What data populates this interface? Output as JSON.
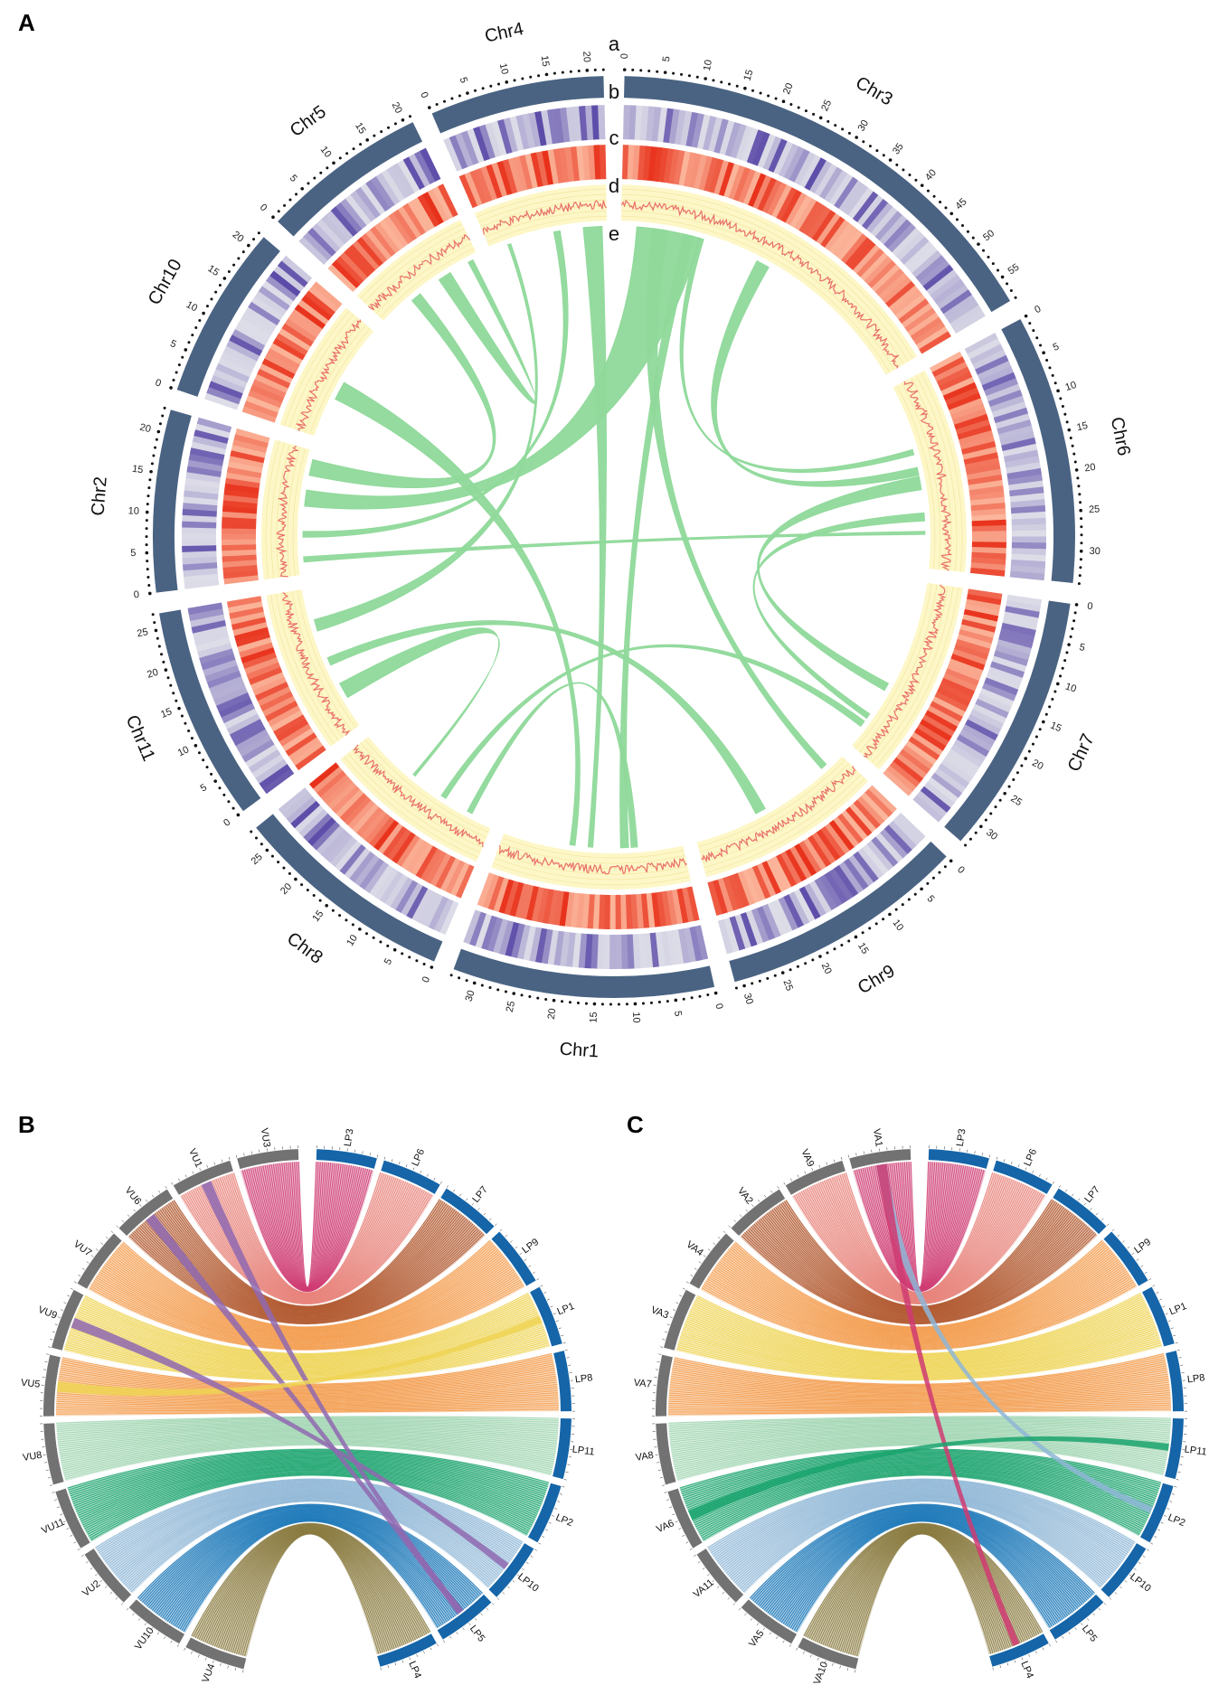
{
  "panels": [
    {
      "letter": "A"
    },
    {
      "letter": "B"
    },
    {
      "letter": "C"
    }
  ],
  "panelA": {
    "track_letters": [
      "a",
      "b",
      "c",
      "d",
      "e"
    ],
    "chromosomes": [
      {
        "name": "Chr3",
        "length": 58,
        "ticks": [
          "0",
          "5",
          "10",
          "15",
          "20",
          "25",
          "30",
          "35",
          "40",
          "45",
          "50",
          "55"
        ]
      },
      {
        "name": "Chr6",
        "length": 34,
        "ticks": [
          "0",
          "5",
          "10",
          "15",
          "20",
          "25",
          "30"
        ]
      },
      {
        "name": "Chr7",
        "length": 33,
        "ticks": [
          "0",
          "5",
          "10",
          "15",
          "20",
          "25",
          "30"
        ]
      },
      {
        "name": "Chr9",
        "length": 31,
        "ticks": [
          "0",
          "5",
          "10",
          "15",
          "20",
          "25",
          "30"
        ]
      },
      {
        "name": "Chr1",
        "length": 33,
        "ticks": [
          "0",
          "5",
          "10",
          "15",
          "20",
          "25",
          "30"
        ]
      },
      {
        "name": "Chr8",
        "length": 28,
        "ticks": [
          "0",
          "5",
          "10",
          "15",
          "20",
          "25"
        ]
      },
      {
        "name": "Chr11",
        "length": 27,
        "ticks": [
          "0",
          "5",
          "10",
          "15",
          "20",
          "25"
        ]
      },
      {
        "name": "Chr2",
        "length": 23,
        "ticks": [
          "0",
          "5",
          "10",
          "15",
          "20"
        ]
      },
      {
        "name": "Chr10",
        "length": 22,
        "ticks": [
          "0",
          "5",
          "10",
          "15",
          "20"
        ]
      },
      {
        "name": "Chr5",
        "length": 21,
        "ticks": [
          "0",
          "5",
          "10",
          "15",
          "20"
        ]
      },
      {
        "name": "Chr4",
        "length": 22,
        "ticks": [
          "0",
          "5",
          "10",
          "15",
          "20"
        ]
      }
    ],
    "links": [
      [
        "Chr4",
        0.15,
        0.6,
        "Chr11",
        0.7,
        2.2
      ],
      [
        "Chr4",
        0.55,
        1.2,
        "Chr2",
        0.3,
        1.1
      ],
      [
        "Chr4",
        0.8,
        3.5,
        "Chr1",
        0.5,
        0.9
      ],
      [
        "Chr10",
        0.35,
        3.5,
        "Chr1",
        0.6,
        1.0
      ],
      [
        "Chr5",
        0.6,
        2.5,
        "Chr5",
        0.9,
        1.0
      ],
      [
        "Chr3",
        0.05,
        12.0,
        "Chr2",
        0.55,
        3.0
      ],
      [
        "Chr3",
        0.2,
        2.0,
        "Chr1",
        0.3,
        1.5
      ],
      [
        "Chr3",
        0.1,
        3.0,
        "Chr9",
        0.1,
        1.2
      ],
      [
        "Chr3",
        0.45,
        2.5,
        "Chr6",
        0.45,
        1.5
      ],
      [
        "Chr3",
        0.25,
        1.0,
        "Chr6",
        0.35,
        1.0
      ],
      [
        "Chr6",
        0.5,
        2.5,
        "Chr7",
        0.6,
        1.5
      ],
      [
        "Chr6",
        0.7,
        1.5,
        "Chr7",
        0.8,
        1.0
      ],
      [
        "Chr6",
        0.8,
        0.6,
        "Chr2",
        0.1,
        1.0
      ],
      [
        "Chr7",
        0.85,
        1.2,
        "Chr8",
        0.35,
        1.0
      ],
      [
        "Chr11",
        0.45,
        1.5,
        "Chr9",
        0.55,
        2.0
      ],
      [
        "Chr11",
        0.2,
        3.0,
        "Chr8",
        0.6,
        0.5
      ],
      [
        "Chr1",
        0.25,
        1.2,
        "Chr8",
        0.15,
        1.0
      ],
      [
        "Chr2",
        0.8,
        3.0,
        "Chr5",
        0.3,
        2.0
      ]
    ]
  },
  "panelB": {
    "left_chroms": [
      "VU3",
      "VU1",
      "VU6",
      "VU7",
      "VU9",
      "VU5",
      "VU8",
      "VU11",
      "VU2",
      "VU10",
      "VU4"
    ],
    "right_chroms": [
      "LP3",
      "LP6",
      "LP7",
      "LP9",
      "LP1",
      "LP8",
      "LP11",
      "LP2",
      "LP10",
      "LP5",
      "LP4"
    ],
    "colors": {
      "grey": "#727272",
      "blue": "#1565a8",
      "bands": [
        "#cf3b72",
        "#e8837a",
        "#b0552a",
        "#f39a4a",
        "#eed454",
        "#f39a4a",
        "#9fd5b0",
        "#1aa36d",
        "#8eb6d6",
        "#1b77b8",
        "#8a7a40",
        "#8f68b0"
      ]
    }
  },
  "panelC": {
    "left_chroms": [
      "VA1",
      "VA9",
      "VA2",
      "VA4",
      "VA3",
      "VA7",
      "VA8",
      "VA6",
      "VA11",
      "VA5",
      "VA10"
    ],
    "right_chroms": [
      "LP3",
      "LP6",
      "LP7",
      "LP9",
      "LP1",
      "LP8",
      "LP11",
      "LP2",
      "LP10",
      "LP5",
      "LP4"
    ]
  },
  "colors": {
    "ideogram": "#4a6382",
    "density_low": "#dddde8",
    "density_high": "#5b4aa8",
    "heat_low": "#fbb59a",
    "heat_high": "#e8301a",
    "line_track_bg": "#fdf7c8",
    "line_color": "#e9706a",
    "link_color": "#8fd99a"
  }
}
